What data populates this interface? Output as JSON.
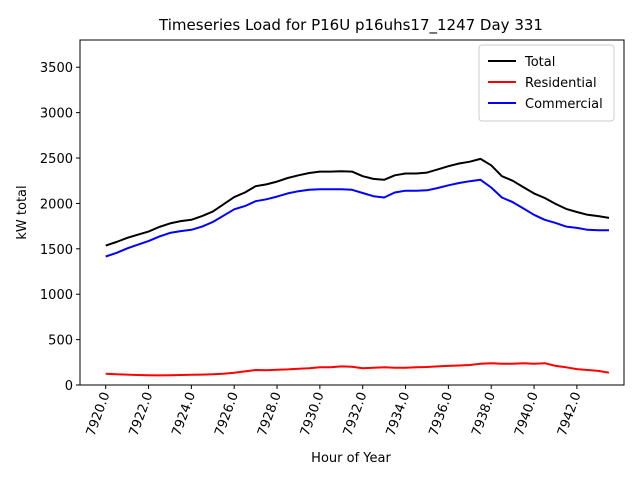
{
  "chart_data": {
    "type": "line",
    "title": "Timeseries Load for P16U p16uhs17_1247  Day 331",
    "xlabel": "Hour of Year",
    "ylabel": "kW total",
    "xlim": [
      7918.8,
      7944.2
    ],
    "ylim": [
      0,
      3800
    ],
    "x_ticks": [
      7920,
      7922,
      7924,
      7926,
      7928,
      7930,
      7932,
      7934,
      7936,
      7938,
      7940,
      7942
    ],
    "x_tick_labels": [
      "7920.0",
      "7922.0",
      "7924.0",
      "7926.0",
      "7928.0",
      "7930.0",
      "7932.0",
      "7934.0",
      "7936.0",
      "7938.0",
      "7940.0",
      "7942.0"
    ],
    "y_ticks": [
      0,
      500,
      1000,
      1500,
      2000,
      2500,
      3000,
      3500
    ],
    "y_tick_labels": [
      "0",
      "500",
      "1000",
      "1500",
      "2000",
      "2500",
      "3000",
      "3500"
    ],
    "legend_position": "top-right",
    "x": [
      7920,
      7920.5,
      7921,
      7921.5,
      7922,
      7922.5,
      7923,
      7923.5,
      7924,
      7924.5,
      7925,
      7925.5,
      7926,
      7926.5,
      7927,
      7927.5,
      7928,
      7928.5,
      7929,
      7929.5,
      7930,
      7930.5,
      7931,
      7931.5,
      7932,
      7932.5,
      7933,
      7933.5,
      7934,
      7934.5,
      7935,
      7935.5,
      7936,
      7936.5,
      7937,
      7937.5,
      7938,
      7938.5,
      7939,
      7939.5,
      7940,
      7940.5,
      7941,
      7941.5,
      7942,
      7942.5,
      7943,
      7943.5
    ],
    "series": [
      {
        "name": "Total",
        "color": "#000000",
        "values": [
          1535,
          1575,
          1620,
          1655,
          1690,
          1740,
          1780,
          1805,
          1820,
          1860,
          1910,
          1990,
          2070,
          2120,
          2190,
          2210,
          2240,
          2280,
          2310,
          2335,
          2350,
          2350,
          2355,
          2350,
          2300,
          2270,
          2260,
          2310,
          2330,
          2330,
          2340,
          2375,
          2410,
          2440,
          2460,
          2490,
          2420,
          2300,
          2250,
          2180,
          2110,
          2060,
          1995,
          1940,
          1905,
          1875,
          1860,
          1840
        ]
      },
      {
        "name": "Residential",
        "color": "#ff0000",
        "values": [
          125,
          118,
          115,
          110,
          108,
          106,
          108,
          110,
          112,
          114,
          118,
          125,
          135,
          150,
          165,
          162,
          168,
          172,
          178,
          185,
          195,
          195,
          205,
          200,
          185,
          190,
          195,
          190,
          190,
          195,
          198,
          205,
          210,
          215,
          220,
          235,
          240,
          235,
          235,
          240,
          235,
          240,
          210,
          195,
          175,
          165,
          155,
          135
        ]
      },
      {
        "name": "Commercial",
        "color": "#0000ff",
        "values": [
          1415,
          1455,
          1505,
          1545,
          1585,
          1635,
          1675,
          1695,
          1710,
          1745,
          1795,
          1865,
          1935,
          1970,
          2025,
          2045,
          2075,
          2110,
          2135,
          2150,
          2155,
          2155,
          2155,
          2150,
          2115,
          2080,
          2065,
          2120,
          2140,
          2140,
          2145,
          2170,
          2200,
          2225,
          2245,
          2260,
          2175,
          2065,
          2015,
          1945,
          1875,
          1820,
          1785,
          1745,
          1730,
          1710,
          1705,
          1705
        ]
      }
    ]
  }
}
